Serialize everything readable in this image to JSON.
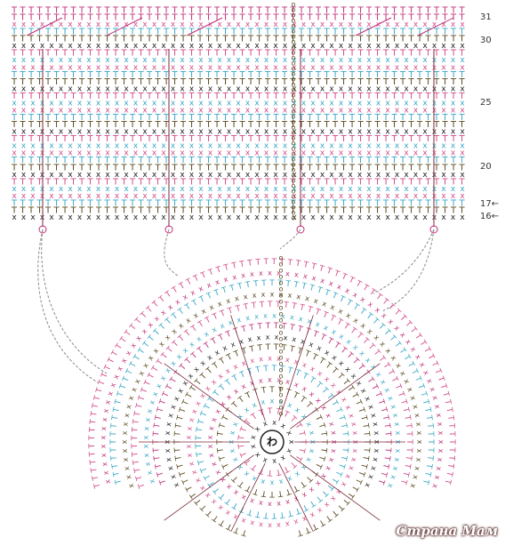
{
  "row_labels": [
    {
      "text": "31",
      "row": "31"
    },
    {
      "text": "30",
      "row": "30"
    },
    {
      "text": "25",
      "row": "25"
    },
    {
      "text": "20",
      "row": "20"
    },
    {
      "text": "17←",
      "row": "17"
    },
    {
      "text": "16←",
      "row": "16"
    }
  ],
  "center_symbol": "わ",
  "watermark": "Страна Мам",
  "colors": {
    "pink": "#d34b8a",
    "cyan": "#3aa7c8",
    "olive": "#5b4a1e",
    "magenta": "#c0307a",
    "dark": "#222222",
    "guide": "#8a8a8a"
  },
  "symbols": [
    "x",
    "T",
    "Y"
  ]
}
